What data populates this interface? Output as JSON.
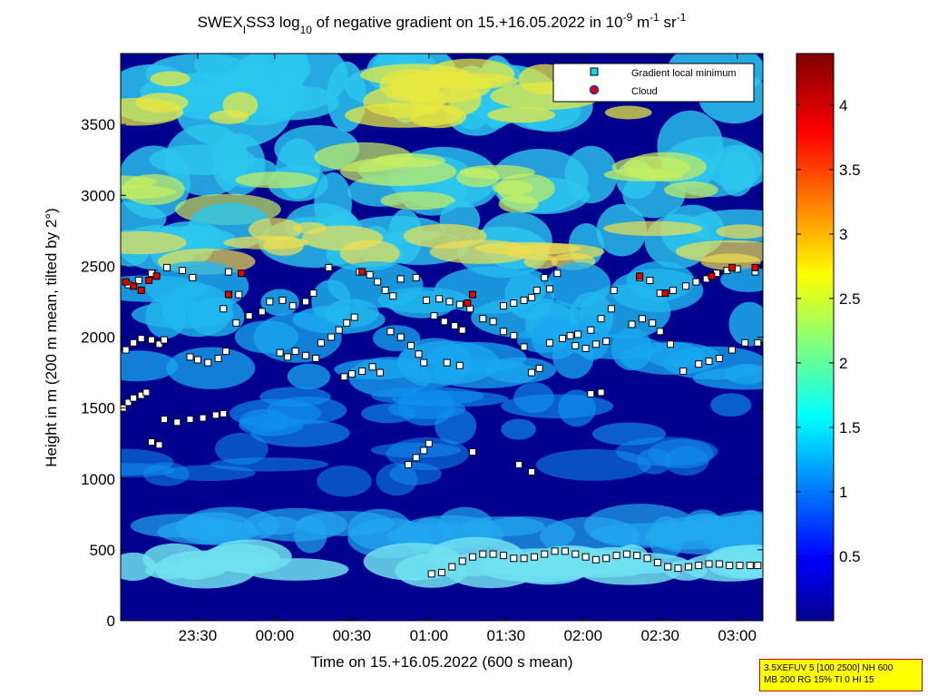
{
  "title": {
    "prefix": "SWEX",
    "prefix_sub": "I",
    "main": "SS3 log",
    "log_sub": "10",
    "rest": " of negative gradient on 15.+16.05.2022 in 10",
    "unit_exp1": "-9",
    "unit_m": " m",
    "unit_exp2": "-1",
    "unit_sr": " sr",
    "unit_exp3": "-1"
  },
  "xlabel": "Time on 15.+16.05.2022 (600 s mean)",
  "ylabel": "Height in m (200 m mean, tilted by 2°)",
  "legend": {
    "gradient": "Gradient local minimum",
    "cloud": "Cloud"
  },
  "colors": {
    "background": "#00008f",
    "gradient_marker": "#1fd0e0",
    "cloud_marker": "#e00000",
    "cloud_outline": "#2030d0",
    "param_box_fill": "#ffff00",
    "param_box_border": "#d40000"
  },
  "colorbar": {
    "colormap": "jet",
    "range": [
      0,
      4.4
    ],
    "ticks": [
      "0.5",
      "1",
      "1.5",
      "2",
      "2.5",
      "3",
      "3.5",
      "4"
    ]
  },
  "param_box": {
    "line1": "3.5XEFUV 5 [100 2500] NH 600",
    "line2": "MB 200 RG 15% TI 0 HI 15"
  },
  "chart_data": {
    "type": "heatmap",
    "x_range": [
      "23:00",
      "03:10"
    ],
    "y_range": [
      0,
      4000
    ],
    "x_ticks": [
      "23:30",
      "00:00",
      "00:30",
      "01:00",
      "01:30",
      "02:00",
      "02:30",
      "03:00"
    ],
    "y_ticks": [
      "0",
      "500",
      "1000",
      "1500",
      "2000",
      "2500",
      "3000",
      "3500"
    ],
    "series": [
      {
        "name": "Gradient local minimum",
        "points": [
          [
            "23:01",
            1500
          ],
          [
            "23:03",
            1540
          ],
          [
            "23:05",
            1570
          ],
          [
            "23:08",
            1590
          ],
          [
            "23:10",
            1610
          ],
          [
            "23:12",
            1260
          ],
          [
            "23:15",
            1240
          ],
          [
            "23:02",
            1910
          ],
          [
            "23:05",
            1960
          ],
          [
            "23:08",
            1990
          ],
          [
            "23:12",
            1980
          ],
          [
            "23:15",
            1950
          ],
          [
            "23:17",
            1980
          ],
          [
            "23:03",
            2370
          ],
          [
            "23:07",
            2400
          ],
          [
            "23:12",
            2450
          ],
          [
            "23:18",
            2490
          ],
          [
            "23:24",
            2470
          ],
          [
            "23:28",
            2420
          ],
          [
            "23:17",
            1420
          ],
          [
            "23:22",
            1400
          ],
          [
            "23:27",
            1420
          ],
          [
            "23:32",
            1430
          ],
          [
            "23:37",
            1450
          ],
          [
            "23:40",
            1460
          ],
          [
            "23:27",
            1860
          ],
          [
            "23:30",
            1840
          ],
          [
            "23:34",
            1820
          ],
          [
            "23:38",
            1850
          ],
          [
            "23:41",
            1900
          ],
          [
            "23:40",
            2200
          ],
          [
            "23:45",
            2100
          ],
          [
            "23:50",
            2150
          ],
          [
            "23:55",
            2180
          ],
          [
            "23:58",
            2250
          ],
          [
            "23:42",
            2460
          ],
          [
            "23:46",
            2300
          ],
          [
            "00:02",
            1890
          ],
          [
            "00:05",
            1860
          ],
          [
            "00:08",
            1900
          ],
          [
            "00:12",
            1870
          ],
          [
            "00:16",
            1850
          ],
          [
            "00:03",
            2260
          ],
          [
            "00:07",
            2220
          ],
          [
            "00:12",
            2250
          ],
          [
            "00:15",
            2310
          ],
          [
            "00:21",
            2490
          ],
          [
            "00:18",
            1960
          ],
          [
            "00:22",
            2000
          ],
          [
            "00:25",
            2050
          ],
          [
            "00:28",
            2100
          ],
          [
            "00:31",
            2140
          ],
          [
            "00:27",
            1720
          ],
          [
            "00:30",
            1740
          ],
          [
            "00:34",
            1760
          ],
          [
            "00:38",
            1790
          ],
          [
            "00:41",
            1750
          ],
          [
            "00:33",
            2460
          ],
          [
            "00:37",
            2440
          ],
          [
            "00:40",
            2390
          ],
          [
            "00:43",
            2330
          ],
          [
            "00:46",
            2290
          ],
          [
            "00:45",
            2040
          ],
          [
            "00:49",
            2000
          ],
          [
            "00:53",
            1940
          ],
          [
            "00:56",
            1880
          ],
          [
            "00:58",
            1820
          ],
          [
            "00:49",
            2410
          ],
          [
            "00:55",
            2420
          ],
          [
            "00:52",
            1100
          ],
          [
            "00:55",
            1150
          ],
          [
            "00:58",
            1200
          ],
          [
            "01:00",
            1250
          ],
          [
            "00:59",
            2260
          ],
          [
            "01:04",
            2270
          ],
          [
            "01:08",
            2250
          ],
          [
            "01:12",
            2230
          ],
          [
            "01:16",
            2200
          ],
          [
            "01:02",
            2150
          ],
          [
            "01:06",
            2110
          ],
          [
            "01:10",
            2080
          ],
          [
            "01:13",
            2050
          ],
          [
            "01:07",
            1820
          ],
          [
            "01:12",
            1800
          ],
          [
            "01:17",
            1190
          ],
          [
            "01:21",
            2130
          ],
          [
            "01:25",
            2110
          ],
          [
            "01:29",
            2040
          ],
          [
            "01:33",
            2010
          ],
          [
            "01:37",
            1930
          ],
          [
            "01:29",
            2220
          ],
          [
            "01:33",
            2240
          ],
          [
            "01:37",
            2260
          ],
          [
            "01:40",
            2280
          ],
          [
            "01:35",
            1100
          ],
          [
            "01:40",
            1050
          ],
          [
            "01:42",
            2330
          ],
          [
            "01:40",
            1750
          ],
          [
            "01:43",
            1780
          ],
          [
            "01:47",
            1960
          ],
          [
            "01:52",
            1990
          ],
          [
            "01:55",
            2010
          ],
          [
            "01:45",
            2420
          ],
          [
            "01:50",
            2450
          ],
          [
            "01:47",
            2340
          ],
          [
            "01:57",
            1940
          ],
          [
            "02:01",
            1920
          ],
          [
            "02:05",
            1950
          ],
          [
            "02:09",
            1970
          ],
          [
            "01:58",
            2020
          ],
          [
            "02:03",
            2050
          ],
          [
            "02:07",
            2130
          ],
          [
            "02:11",
            2200
          ],
          [
            "02:03",
            1600
          ],
          [
            "02:07",
            1610
          ],
          [
            "02:12",
            2330
          ],
          [
            "02:19",
            2090
          ],
          [
            "02:23",
            2130
          ],
          [
            "02:27",
            2100
          ],
          [
            "02:30",
            2040
          ],
          [
            "02:34",
            1950
          ],
          [
            "02:22",
            2420
          ],
          [
            "02:26",
            2400
          ],
          [
            "02:30",
            2310
          ],
          [
            "02:35",
            2330
          ],
          [
            "02:40",
            2360
          ],
          [
            "02:44",
            2390
          ],
          [
            "02:48",
            2410
          ],
          [
            "02:52",
            2450
          ],
          [
            "02:56",
            2470
          ],
          [
            "03:00",
            2480
          ],
          [
            "02:39",
            1760
          ],
          [
            "02:45",
            1810
          ],
          [
            "02:49",
            1830
          ],
          [
            "02:53",
            1850
          ],
          [
            "02:58",
            1910
          ],
          [
            "03:03",
            1960
          ],
          [
            "03:07",
            2460
          ],
          [
            "03:08",
            1960
          ],
          [
            "01:01",
            330
          ],
          [
            "01:05",
            340
          ],
          [
            "01:09",
            380
          ],
          [
            "01:13",
            420
          ],
          [
            "01:17",
            450
          ],
          [
            "01:21",
            470
          ],
          [
            "01:25",
            470
          ],
          [
            "01:29",
            460
          ],
          [
            "01:33",
            440
          ],
          [
            "01:37",
            440
          ],
          [
            "01:41",
            450
          ],
          [
            "01:45",
            470
          ],
          [
            "01:49",
            490
          ],
          [
            "01:53",
            490
          ],
          [
            "01:57",
            470
          ],
          [
            "02:01",
            450
          ],
          [
            "02:05",
            430
          ],
          [
            "02:09",
            440
          ],
          [
            "02:13",
            460
          ],
          [
            "02:17",
            470
          ],
          [
            "02:21",
            460
          ],
          [
            "02:25",
            440
          ],
          [
            "02:29",
            410
          ],
          [
            "02:33",
            380
          ],
          [
            "02:37",
            370
          ],
          [
            "02:41",
            380
          ],
          [
            "02:45",
            390
          ],
          [
            "02:49",
            400
          ],
          [
            "02:53",
            400
          ],
          [
            "02:57",
            390
          ],
          [
            "03:01",
            390
          ],
          [
            "03:05",
            390
          ],
          [
            "03:08",
            390
          ]
        ]
      },
      {
        "name": "Cloud",
        "points": [
          [
            "23:02",
            2390
          ],
          [
            "23:05",
            2360
          ],
          [
            "23:08",
            2330
          ],
          [
            "23:11",
            2400
          ],
          [
            "23:14",
            2430
          ],
          [
            "23:42",
            2300
          ],
          [
            "23:47",
            2450
          ],
          [
            "01:15",
            2240
          ],
          [
            "01:17",
            2300
          ],
          [
            "02:32",
            2310
          ],
          [
            "02:50",
            2430
          ],
          [
            "02:58",
            2490
          ],
          [
            "03:07",
            2490
          ],
          [
            "00:34",
            2460
          ],
          [
            "02:22",
            2430
          ]
        ]
      }
    ]
  }
}
